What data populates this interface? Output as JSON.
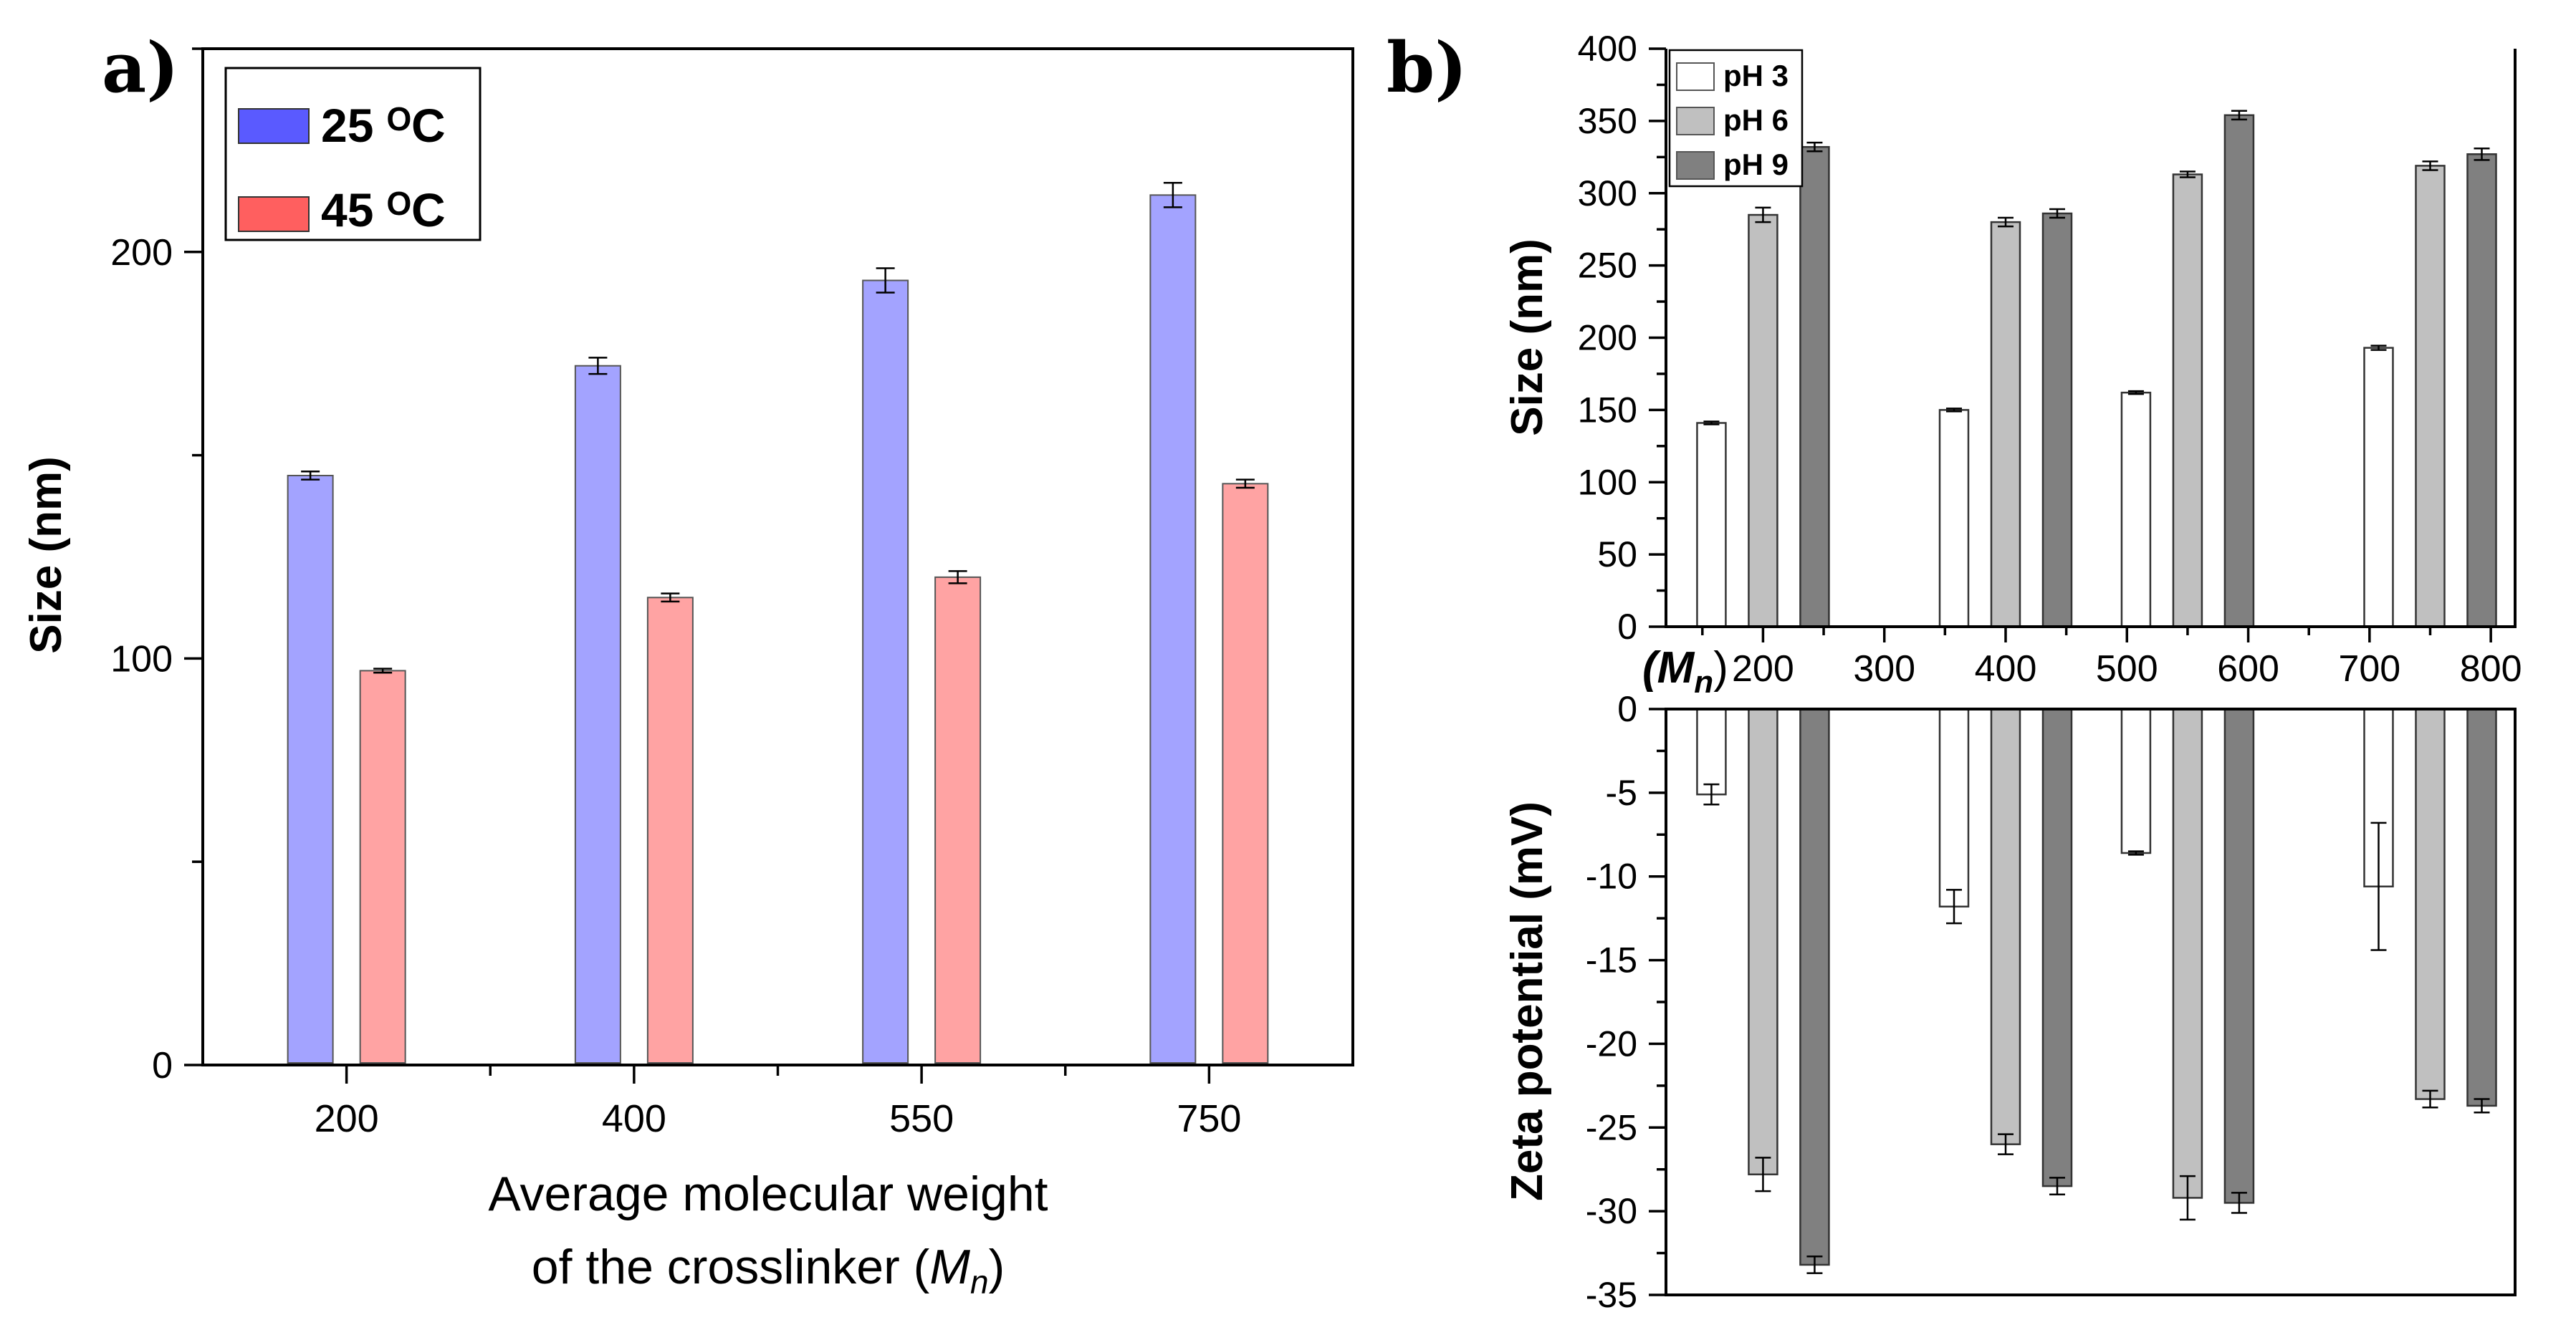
{
  "chart_data": [
    {
      "panel": "a)",
      "type": "bar",
      "categories": [
        "200",
        "400",
        "550",
        "750"
      ],
      "series": [
        {
          "name": "25 ᴼC",
          "color": "#a3a3ff",
          "legend_color": "#5a5aff",
          "values": [
            145,
            172,
            193,
            214
          ],
          "errors": [
            1,
            2,
            3,
            3
          ]
        },
        {
          "name": "45 ᴼC",
          "color": "#ffa3a3",
          "legend_color": "#ff5f5f",
          "values": [
            97,
            115,
            120,
            143
          ],
          "errors": [
            0.5,
            1,
            1.5,
            1
          ]
        }
      ],
      "xlabel_line1": "Average molecular weight",
      "xlabel_line2": "of the crosslinker ",
      "xlabel_var": "M",
      "xlabel_sub": "n",
      "ylabel": "Size (nm)",
      "ylim": [
        0,
        250
      ],
      "yticks": [
        "0",
        "100",
        "200"
      ],
      "legend_position": "top-left"
    },
    {
      "panel": "b)",
      "type": "bar",
      "x": [
        200,
        400,
        550,
        750
      ],
      "xlim": [
        120,
        820
      ],
      "xticks": [
        "200",
        "300",
        "400",
        "500",
        "600",
        "700",
        "800"
      ],
      "x_axis_var": "(M",
      "x_axis_sub": "n",
      "x_axis_close": ")",
      "top": {
        "ylabel": "Size (nm)",
        "ylim": [
          0,
          400
        ],
        "yticks": [
          "0",
          "50",
          "100",
          "150",
          "200",
          "250",
          "300",
          "350",
          "400"
        ],
        "series": [
          {
            "name": "pH 3",
            "color": "#ffffff",
            "values": [
              141,
              150,
              162,
              193
            ],
            "errors": [
              1,
              1,
              1,
              1.5
            ]
          },
          {
            "name": "pH 6",
            "color": "#c0c0c0",
            "values": [
              285,
              280,
              313,
              319
            ],
            "errors": [
              5,
              3,
              2,
              3
            ]
          },
          {
            "name": "pH 9",
            "color": "#808080",
            "values": [
              332,
              286,
              354,
              327
            ],
            "errors": [
              3,
              3,
              3,
              4
            ]
          }
        ]
      },
      "bottom": {
        "ylabel": "Zeta potential (mV)",
        "ylim": [
          -35,
          0
        ],
        "yticks": [
          "0",
          "-5",
          "-10",
          "-15",
          "-20",
          "-25",
          "-30",
          "-35"
        ],
        "series": [
          {
            "name": "pH 3",
            "color": "#ffffff",
            "values": [
              -5.1,
              -11.8,
              -8.6,
              -10.6
            ],
            "errors": [
              0.6,
              1,
              0.1,
              3.8
            ]
          },
          {
            "name": "pH 6",
            "color": "#c0c0c0",
            "values": [
              -27.8,
              -26.0,
              -29.2,
              -23.3
            ],
            "errors": [
              1,
              0.6,
              1.3,
              0.5
            ]
          },
          {
            "name": "pH 9",
            "color": "#808080",
            "values": [
              -33.2,
              -28.5,
              -29.5,
              -23.7
            ],
            "errors": [
              0.5,
              0.5,
              0.6,
              0.4
            ]
          }
        ]
      },
      "legend_position": "top-left"
    }
  ]
}
